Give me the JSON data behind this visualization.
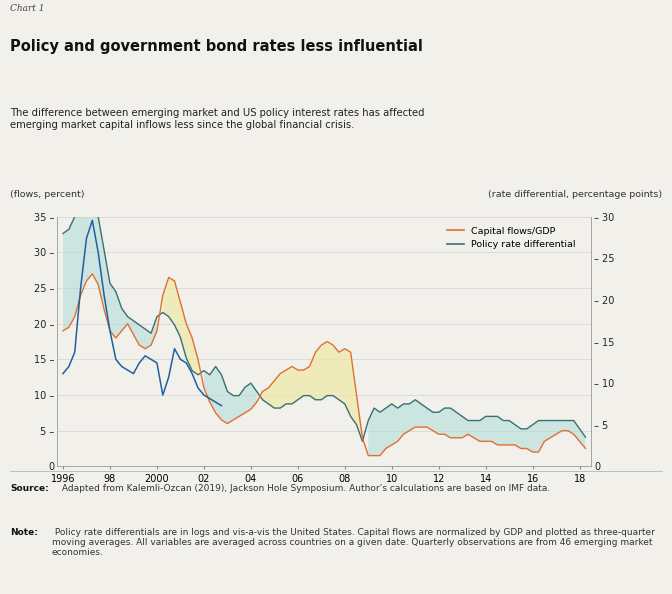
{
  "chart_label": "Chart 1",
  "title": "Policy and government bond rates less influential",
  "subtitle": "The difference between emerging market and US policy interest rates has affected\nemerging market capital inflows less since the global financial crisis.",
  "left_ylabel": "(flows, percent)",
  "right_ylabel": "(rate differential, percentage points)",
  "left_yticks": [
    0,
    5,
    10,
    15,
    20,
    25,
    30,
    35
  ],
  "right_yticks": [
    0,
    5,
    10,
    15,
    20,
    25,
    30
  ],
  "xtick_labels": [
    "1996",
    "98",
    "2000",
    "02",
    "04",
    "06",
    "08",
    "10",
    "12",
    "14",
    "16",
    "18"
  ],
  "source_bold": "Source:",
  "source_rest": " Adapted from Kalemli-Ozcan (2019), Jackson Hole Symposium. Author’s calculations are based on IMF data.",
  "note_bold": "Note:",
  "note_rest": " Policy rate differentials are in logs and vis-a-vis the United States. Capital flows are normalized by GDP and plotted as three-quarter moving averages. All variables are averaged across countries on a given date. Quarterly observations are from 46 emerging market economies.",
  "capital_flows_color": "#E07030",
  "policy_rate_color": "#3A7070",
  "blue_line_color": "#2060A0",
  "fill_color_teal": "#B0DDD8",
  "fill_color_yellow": "#EDE8A0",
  "background_color": "#F2F0EB",
  "capital_flows_data_x": [
    1996.0,
    1996.25,
    1996.5,
    1996.75,
    1997.0,
    1997.25,
    1997.5,
    1997.75,
    1998.0,
    1998.25,
    1998.5,
    1998.75,
    1999.0,
    1999.25,
    1999.5,
    1999.75,
    2000.0,
    2000.25,
    2000.5,
    2000.75,
    2001.0,
    2001.25,
    2001.5,
    2001.75,
    2002.0,
    2002.25,
    2002.5,
    2002.75,
    2003.0,
    2003.25,
    2003.5,
    2003.75,
    2004.0,
    2004.25,
    2004.5,
    2004.75,
    2005.0,
    2005.25,
    2005.5,
    2005.75,
    2006.0,
    2006.25,
    2006.5,
    2006.75,
    2007.0,
    2007.25,
    2007.5,
    2007.75,
    2008.0,
    2008.25,
    2008.5,
    2008.75,
    2009.0,
    2009.25,
    2009.5,
    2009.75,
    2010.0,
    2010.25,
    2010.5,
    2010.75,
    2011.0,
    2011.25,
    2011.5,
    2011.75,
    2012.0,
    2012.25,
    2012.5,
    2012.75,
    2013.0,
    2013.25,
    2013.5,
    2013.75,
    2014.0,
    2014.25,
    2014.5,
    2014.75,
    2015.0,
    2015.25,
    2015.5,
    2015.75,
    2016.0,
    2016.25,
    2016.5,
    2016.75,
    2017.0,
    2017.25,
    2017.5,
    2017.75,
    2018.0,
    2018.25
  ],
  "capital_flows_data_y": [
    19.0,
    19.5,
    21.0,
    24.0,
    26.0,
    27.0,
    25.5,
    22.0,
    19.0,
    18.0,
    19.0,
    20.0,
    18.5,
    17.0,
    16.5,
    17.0,
    19.0,
    24.0,
    26.5,
    26.0,
    23.0,
    20.0,
    18.0,
    15.0,
    11.0,
    9.0,
    7.5,
    6.5,
    6.0,
    6.5,
    7.0,
    7.5,
    8.0,
    9.0,
    10.5,
    11.0,
    12.0,
    13.0,
    13.5,
    14.0,
    13.5,
    13.5,
    14.0,
    16.0,
    17.0,
    17.5,
    17.0,
    16.0,
    16.5,
    16.0,
    10.0,
    4.0,
    1.5,
    1.5,
    1.5,
    2.5,
    3.0,
    3.5,
    4.5,
    5.0,
    5.5,
    5.5,
    5.5,
    5.0,
    4.5,
    4.5,
    4.0,
    4.0,
    4.0,
    4.5,
    4.0,
    3.5,
    3.5,
    3.5,
    3.0,
    3.0,
    3.0,
    3.0,
    2.5,
    2.5,
    2.0,
    2.0,
    3.5,
    4.0,
    4.5,
    5.0,
    5.0,
    4.5,
    3.5,
    2.5
  ],
  "policy_rate_data_x": [
    1996.0,
    1996.25,
    1996.5,
    1996.75,
    1997.0,
    1997.25,
    1997.5,
    1997.75,
    1998.0,
    1998.25,
    1998.5,
    1998.75,
    1999.0,
    1999.25,
    1999.5,
    1999.75,
    2000.0,
    2000.25,
    2000.5,
    2000.75,
    2001.0,
    2001.25,
    2001.5,
    2001.75,
    2002.0,
    2002.25,
    2002.5,
    2002.75,
    2003.0,
    2003.25,
    2003.5,
    2003.75,
    2004.0,
    2004.25,
    2004.5,
    2004.75,
    2005.0,
    2005.25,
    2005.5,
    2005.75,
    2006.0,
    2006.25,
    2006.5,
    2006.75,
    2007.0,
    2007.25,
    2007.5,
    2007.75,
    2008.0,
    2008.25,
    2008.5,
    2008.75,
    2009.0,
    2009.25,
    2009.5,
    2009.75,
    2010.0,
    2010.25,
    2010.5,
    2010.75,
    2011.0,
    2011.25,
    2011.5,
    2011.75,
    2012.0,
    2012.25,
    2012.5,
    2012.75,
    2013.0,
    2013.25,
    2013.5,
    2013.75,
    2014.0,
    2014.25,
    2014.5,
    2014.75,
    2015.0,
    2015.25,
    2015.5,
    2015.75,
    2016.0,
    2016.25,
    2016.5,
    2016.75,
    2017.0,
    2017.25,
    2017.5,
    2017.75,
    2018.0,
    2018.25
  ],
  "policy_rate_data_y": [
    28.0,
    28.5,
    30.0,
    33.0,
    34.0,
    33.0,
    30.0,
    26.0,
    22.0,
    21.0,
    19.0,
    18.0,
    17.5,
    17.0,
    16.5,
    16.0,
    18.0,
    18.5,
    18.0,
    17.0,
    15.5,
    13.0,
    11.5,
    11.0,
    11.5,
    11.0,
    12.0,
    11.0,
    9.0,
    8.5,
    8.5,
    9.5,
    10.0,
    9.0,
    8.0,
    7.5,
    7.0,
    7.0,
    7.5,
    7.5,
    8.0,
    8.5,
    8.5,
    8.0,
    8.0,
    8.5,
    8.5,
    8.0,
    7.5,
    6.0,
    5.0,
    3.0,
    5.5,
    7.0,
    6.5,
    7.0,
    7.5,
    7.0,
    7.5,
    7.5,
    8.0,
    7.5,
    7.0,
    6.5,
    6.5,
    7.0,
    7.0,
    6.5,
    6.0,
    5.5,
    5.5,
    5.5,
    6.0,
    6.0,
    6.0,
    5.5,
    5.5,
    5.0,
    4.5,
    4.5,
    5.0,
    5.5,
    5.5,
    5.5,
    5.5,
    5.5,
    5.5,
    5.5,
    4.5,
    3.5
  ],
  "blue_line_data_x": [
    1996.0,
    1996.25,
    1996.5,
    1996.75,
    1997.0,
    1997.25,
    1997.5,
    1997.75,
    1998.0,
    1998.25,
    1998.5,
    1998.75,
    1999.0,
    1999.25,
    1999.5,
    1999.75,
    2000.0,
    2000.25,
    2000.5,
    2000.75,
    2001.0,
    2001.25,
    2001.5,
    2001.75,
    2002.0,
    2002.25,
    2002.5,
    2002.75
  ],
  "blue_line_data_y": [
    13.0,
    14.0,
    16.0,
    25.0,
    32.0,
    34.5,
    30.0,
    24.0,
    19.0,
    15.0,
    14.0,
    13.5,
    13.0,
    14.5,
    15.5,
    15.0,
    14.5,
    10.0,
    12.5,
    16.5,
    15.0,
    14.5,
    13.0,
    11.0,
    10.0,
    9.5,
    9.0,
    8.5
  ]
}
